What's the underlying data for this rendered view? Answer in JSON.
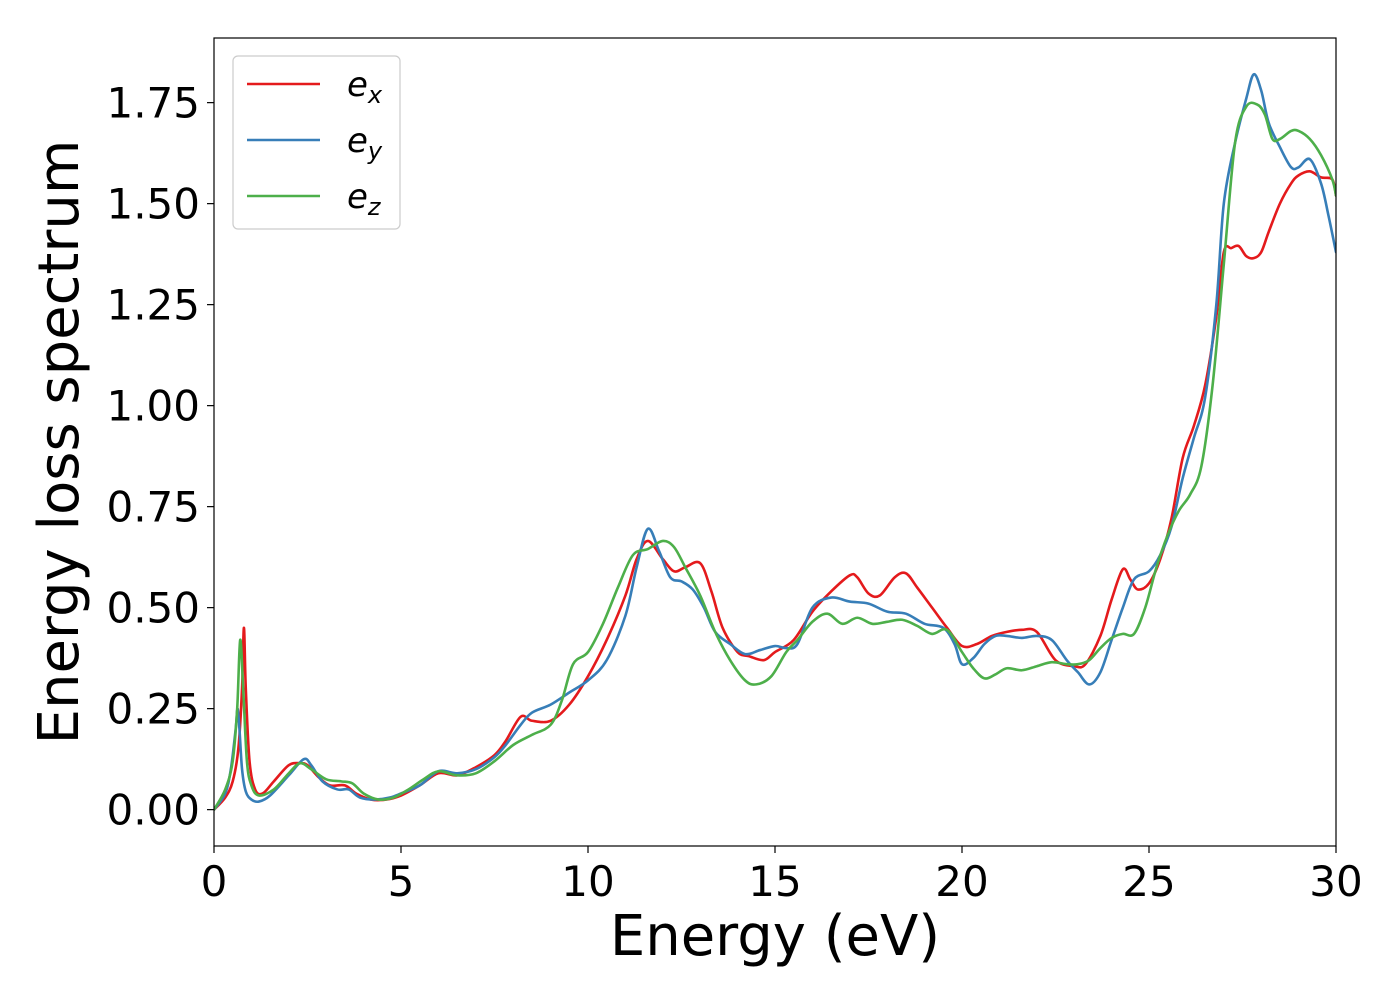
{
  "chart_data": {
    "type": "line",
    "title": "",
    "xlabel": "Energy (eV)",
    "ylabel": "Energy loss spectrum",
    "xlim": [
      0,
      30
    ],
    "ylim": [
      -0.09,
      1.91
    ],
    "xticks": [
      0,
      5,
      10,
      15,
      20,
      25,
      30
    ],
    "xtick_labels": [
      "0",
      "5",
      "10",
      "15",
      "20",
      "25",
      "30"
    ],
    "yticks": [
      0.0,
      0.25,
      0.5,
      0.75,
      1.0,
      1.25,
      1.5,
      1.75
    ],
    "ytick_labels": [
      "0.00",
      "0.25",
      "0.50",
      "0.75",
      "1.00",
      "1.25",
      "1.50",
      "1.75"
    ],
    "grid": false,
    "legend_position": "top-left",
    "series": [
      {
        "name": "e",
        "subscript": "x",
        "color": "#e41a1c",
        "x": [
          0,
          0.3,
          0.5,
          0.65,
          0.75,
          0.8,
          0.85,
          0.95,
          1.1,
          1.3,
          1.6,
          2.0,
          2.3,
          2.5,
          2.8,
          3.1,
          3.5,
          3.8,
          4.2,
          4.6,
          5.0,
          5.5,
          6.0,
          6.5,
          7.0,
          7.5,
          7.8,
          8.2,
          8.5,
          9.0,
          9.5,
          10.0,
          10.5,
          11.0,
          11.3,
          11.6,
          12.0,
          12.3,
          12.6,
          13.0,
          13.3,
          13.6,
          14.0,
          14.3,
          14.7,
          15.0,
          15.5,
          16.0,
          16.5,
          17.0,
          17.2,
          17.5,
          17.8,
          18.2,
          18.5,
          18.8,
          19.2,
          19.6,
          20.0,
          20.4,
          20.8,
          21.2,
          21.6,
          22.0,
          22.5,
          23.0,
          23.3,
          23.7,
          24.0,
          24.3,
          24.5,
          24.7,
          25.0,
          25.3,
          25.6,
          25.9,
          26.2,
          26.5,
          26.8,
          27.0,
          27.2,
          27.4,
          27.6,
          27.8,
          28.0,
          28.2,
          28.5,
          28.8,
          29.0,
          29.3,
          29.6,
          29.9,
          30.0
        ],
        "values": [
          0.0,
          0.03,
          0.07,
          0.15,
          0.3,
          0.45,
          0.3,
          0.12,
          0.05,
          0.04,
          0.07,
          0.11,
          0.115,
          0.11,
          0.08,
          0.06,
          0.06,
          0.04,
          0.025,
          0.025,
          0.035,
          0.06,
          0.09,
          0.085,
          0.105,
          0.135,
          0.17,
          0.23,
          0.22,
          0.22,
          0.26,
          0.33,
          0.42,
          0.53,
          0.62,
          0.665,
          0.62,
          0.59,
          0.6,
          0.61,
          0.54,
          0.45,
          0.39,
          0.38,
          0.37,
          0.39,
          0.42,
          0.49,
          0.54,
          0.58,
          0.575,
          0.535,
          0.53,
          0.575,
          0.585,
          0.55,
          0.5,
          0.45,
          0.405,
          0.41,
          0.43,
          0.44,
          0.445,
          0.44,
          0.37,
          0.355,
          0.36,
          0.43,
          0.52,
          0.595,
          0.57,
          0.545,
          0.56,
          0.62,
          0.72,
          0.87,
          0.95,
          1.05,
          1.22,
          1.38,
          1.39,
          1.395,
          1.37,
          1.365,
          1.38,
          1.43,
          1.5,
          1.55,
          1.57,
          1.58,
          1.565,
          1.56,
          1.52
        ]
      },
      {
        "name": "e",
        "subscript": "y",
        "color": "#377eb8",
        "x": [
          0,
          0.3,
          0.45,
          0.58,
          0.63,
          0.68,
          0.75,
          0.85,
          1.0,
          1.2,
          1.5,
          2.0,
          2.4,
          2.6,
          2.9,
          3.3,
          3.6,
          3.9,
          4.3,
          4.7,
          5.0,
          5.5,
          6.0,
          6.5,
          7.0,
          7.5,
          7.8,
          8.2,
          8.5,
          9.0,
          9.5,
          10.0,
          10.5,
          11.0,
          11.3,
          11.6,
          11.9,
          12.2,
          12.5,
          12.8,
          13.1,
          13.4,
          13.8,
          14.2,
          14.6,
          15.0,
          15.3,
          15.6,
          16.0,
          16.5,
          17.0,
          17.5,
          18.0,
          18.5,
          19.0,
          19.5,
          19.8,
          20.0,
          20.3,
          20.6,
          20.9,
          21.2,
          21.6,
          22.0,
          22.4,
          22.8,
          23.1,
          23.4,
          23.7,
          24.0,
          24.3,
          24.6,
          25.0,
          25.3,
          25.6,
          25.9,
          26.2,
          26.5,
          26.8,
          27.0,
          27.3,
          27.6,
          27.8,
          28.0,
          28.2,
          28.5,
          28.8,
          29.0,
          29.3,
          29.6,
          29.8,
          30.0
        ],
        "values": [
          0.0,
          0.04,
          0.1,
          0.2,
          0.25,
          0.2,
          0.1,
          0.045,
          0.025,
          0.02,
          0.035,
          0.085,
          0.125,
          0.11,
          0.07,
          0.05,
          0.05,
          0.03,
          0.025,
          0.03,
          0.04,
          0.06,
          0.095,
          0.09,
          0.1,
          0.13,
          0.16,
          0.21,
          0.24,
          0.26,
          0.29,
          0.32,
          0.37,
          0.48,
          0.6,
          0.695,
          0.64,
          0.575,
          0.565,
          0.545,
          0.5,
          0.44,
          0.41,
          0.385,
          0.395,
          0.405,
          0.4,
          0.41,
          0.5,
          0.525,
          0.515,
          0.51,
          0.49,
          0.485,
          0.46,
          0.45,
          0.41,
          0.36,
          0.375,
          0.41,
          0.43,
          0.43,
          0.425,
          0.43,
          0.42,
          0.37,
          0.34,
          0.31,
          0.34,
          0.42,
          0.5,
          0.57,
          0.59,
          0.63,
          0.7,
          0.82,
          0.92,
          1.02,
          1.25,
          1.5,
          1.65,
          1.76,
          1.82,
          1.78,
          1.7,
          1.64,
          1.59,
          1.59,
          1.61,
          1.55,
          1.47,
          1.38
        ]
      },
      {
        "name": "e",
        "subscript": "z",
        "color": "#4daf4a",
        "x": [
          0,
          0.3,
          0.5,
          0.62,
          0.7,
          0.78,
          0.88,
          1.0,
          1.2,
          1.6,
          2.0,
          2.3,
          2.6,
          3.0,
          3.4,
          3.7,
          4.0,
          4.4,
          4.8,
          5.2,
          5.6,
          6.0,
          6.5,
          7.0,
          7.5,
          8.0,
          8.5,
          9.0,
          9.3,
          9.6,
          10.0,
          10.4,
          10.8,
          11.2,
          11.6,
          12.0,
          12.3,
          12.6,
          13.0,
          13.4,
          13.8,
          14.2,
          14.5,
          14.9,
          15.3,
          15.6,
          16.0,
          16.4,
          16.8,
          17.2,
          17.6,
          18.0,
          18.4,
          18.8,
          19.2,
          19.6,
          20.0,
          20.3,
          20.6,
          20.9,
          21.2,
          21.6,
          22.0,
          22.4,
          22.8,
          23.1,
          23.4,
          23.7,
          24.0,
          24.3,
          24.6,
          24.9,
          25.2,
          25.5,
          25.8,
          26.1,
          26.4,
          26.7,
          27.0,
          27.3,
          27.6,
          27.9,
          28.1,
          28.3,
          28.5,
          28.8,
          29.0,
          29.3,
          29.6,
          29.9,
          30.0
        ],
        "values": [
          0.0,
          0.05,
          0.12,
          0.25,
          0.42,
          0.3,
          0.12,
          0.06,
          0.035,
          0.05,
          0.09,
          0.115,
          0.1,
          0.075,
          0.07,
          0.065,
          0.04,
          0.025,
          0.03,
          0.05,
          0.075,
          0.095,
          0.085,
          0.09,
          0.12,
          0.16,
          0.185,
          0.21,
          0.27,
          0.36,
          0.39,
          0.46,
          0.55,
          0.63,
          0.645,
          0.665,
          0.65,
          0.6,
          0.53,
          0.44,
          0.37,
          0.32,
          0.31,
          0.33,
          0.39,
          0.42,
          0.465,
          0.485,
          0.46,
          0.475,
          0.46,
          0.465,
          0.47,
          0.455,
          0.435,
          0.445,
          0.39,
          0.35,
          0.325,
          0.335,
          0.35,
          0.345,
          0.355,
          0.365,
          0.36,
          0.36,
          0.37,
          0.4,
          0.425,
          0.435,
          0.435,
          0.5,
          0.6,
          0.68,
          0.74,
          0.78,
          0.85,
          1.05,
          1.35,
          1.65,
          1.74,
          1.745,
          1.72,
          1.66,
          1.66,
          1.68,
          1.68,
          1.66,
          1.62,
          1.56,
          1.52
        ]
      }
    ]
  }
}
